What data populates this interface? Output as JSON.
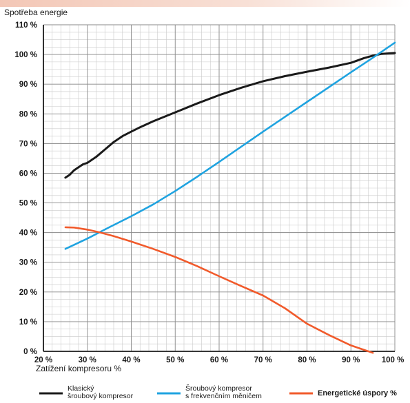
{
  "chart_data": {
    "type": "line",
    "ylabel": "Spotřeba energie",
    "xlabel": "Zatížení kompresoru %",
    "xlim": [
      20,
      100
    ],
    "ylim": [
      0,
      110
    ],
    "x_ticks": [
      "20 %",
      "30 %",
      "40 %",
      "50 %",
      "60 %",
      "70 %",
      "80 %",
      "90 %",
      "100 %"
    ],
    "x_tick_values": [
      20,
      30,
      40,
      50,
      60,
      70,
      80,
      90,
      100
    ],
    "y_ticks": [
      "0 %",
      "10 %",
      "20 %",
      "30 %",
      "40 %",
      "50 %",
      "60 %",
      "70 %",
      "80 %",
      "90 %",
      "100 %",
      "110 %"
    ],
    "y_tick_values": [
      0,
      10,
      20,
      30,
      40,
      50,
      60,
      70,
      80,
      90,
      100,
      110
    ],
    "grid": true,
    "legend_position": "bottom",
    "series": [
      {
        "name": "Klasický šroubový kompresor",
        "color": "#1a1a1a",
        "x": [
          25,
          26,
          27,
          28,
          29,
          30,
          32,
          34,
          36,
          38,
          40,
          42,
          45,
          50,
          55,
          60,
          65,
          70,
          75,
          80,
          85,
          90,
          93,
          95,
          97,
          100
        ],
        "y": [
          58.5,
          59.5,
          61,
          62,
          63,
          63.5,
          65.5,
          68,
          70.5,
          72.5,
          74,
          75.5,
          77.5,
          80.5,
          83.5,
          86.3,
          88.8,
          91,
          92.7,
          94.2,
          95.6,
          97.2,
          98.8,
          99.6,
          100.2,
          100.5
        ]
      },
      {
        "name": "Šroubový kompresor s frekvenčním měničem",
        "color": "#1fa3e0",
        "x": [
          25,
          30,
          35,
          40,
          45,
          50,
          55,
          60,
          65,
          70,
          75,
          80,
          85,
          90,
          95,
          100
        ],
        "y": [
          34.5,
          38,
          41.8,
          45.5,
          49.5,
          54,
          58.8,
          63.8,
          68.9,
          74,
          79,
          84,
          89,
          94,
          98.9,
          104
        ]
      },
      {
        "name": "Energetické úspory %",
        "color": "#f15a2b",
        "x": [
          25,
          27,
          30,
          33,
          36,
          40,
          45,
          50,
          55,
          60,
          65,
          70,
          75,
          80,
          85,
          90,
          95
        ],
        "y": [
          41.8,
          41.7,
          41,
          40,
          38.8,
          37,
          34.5,
          31.8,
          28.7,
          25.3,
          22,
          18.8,
          14.5,
          9.3,
          5.5,
          2,
          -0.5
        ]
      }
    ]
  }
}
